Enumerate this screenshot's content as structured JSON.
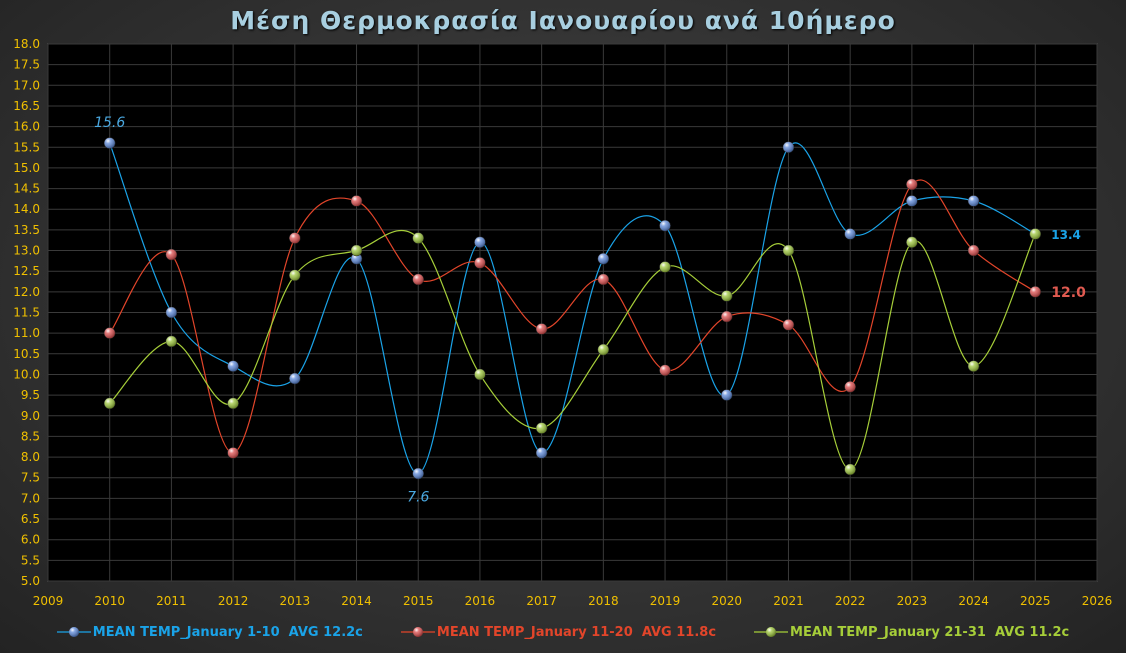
{
  "chart_data": {
    "type": "line",
    "title": "Μέση Θερμοκρασία Ιανουαρίου ανά 10ήμερο",
    "xlabel": "",
    "ylabel": "",
    "xlim": [
      2009,
      2026
    ],
    "ylim": [
      5.0,
      18.0
    ],
    "x_ticks": [
      "2009",
      "2010",
      "2011",
      "2012",
      "2013",
      "2014",
      "2015",
      "2016",
      "2017",
      "2018",
      "2019",
      "2020",
      "2021",
      "2022",
      "2023",
      "2024",
      "2025",
      "2026"
    ],
    "y_ticks": [
      "5.0",
      "5.5",
      "6.0",
      "6.5",
      "7.0",
      "7.5",
      "8.0",
      "8.5",
      "9.0",
      "9.5",
      "10.0",
      "10.5",
      "11.0",
      "11.5",
      "12.0",
      "12.5",
      "13.0",
      "13.5",
      "14.0",
      "14.5",
      "15.0",
      "15.5",
      "16.0",
      "16.5",
      "17.0",
      "17.5",
      "18.0"
    ],
    "x": [
      2010,
      2011,
      2012,
      2013,
      2014,
      2015,
      2016,
      2017,
      2018,
      2019,
      2020,
      2021,
      2022,
      2023,
      2024,
      2025
    ],
    "grid": true,
    "smooth": true,
    "legend_position": "bottom",
    "series": [
      {
        "name": "MEAN TEMP_January 1-10  AVG 12.2c",
        "color": "#1aa3e8",
        "marker_color": "#5a86d6",
        "values": [
          15.6,
          11.5,
          10.2,
          9.9,
          12.8,
          7.6,
          13.2,
          8.1,
          12.8,
          13.6,
          9.5,
          15.5,
          13.4,
          14.2,
          14.2,
          13.4
        ]
      },
      {
        "name": "MEAN TEMP_January 11-20  AVG 11.8c",
        "color": "#e2452a",
        "marker_color": "#d94b4b",
        "values": [
          11.0,
          12.9,
          8.1,
          13.3,
          14.2,
          12.3,
          12.7,
          11.1,
          12.3,
          10.1,
          11.4,
          11.2,
          9.7,
          14.6,
          13.0,
          12.0
        ]
      },
      {
        "name": "MEAN TEMP_January 21-31  AVG 11.2c",
        "color": "#a6ce39",
        "marker_color": "#9bc43a",
        "values": [
          9.3,
          10.8,
          9.3,
          12.4,
          13.0,
          13.3,
          10.0,
          8.7,
          10.6,
          12.6,
          11.9,
          13.0,
          7.7,
          13.2,
          10.2,
          13.4
        ]
      }
    ],
    "annotations": [
      {
        "text": "15.6",
        "x": 2010,
        "y": 15.6,
        "series": 0,
        "position": "above",
        "color": "#4aa8e0",
        "style": "italic"
      },
      {
        "text": "7.6",
        "x": 2015,
        "y": 7.6,
        "series": 0,
        "position": "below",
        "color": "#4aa8e0",
        "style": "italic"
      },
      {
        "text": "13.4",
        "x": 2025,
        "y": 13.4,
        "series": 0,
        "position": "right",
        "color": "#1aa3e8",
        "style": "bold"
      },
      {
        "text": "12.0",
        "x": 2025,
        "y": 12.0,
        "series": 1,
        "position": "right",
        "color": "#e05a50",
        "style": "bold"
      }
    ]
  }
}
